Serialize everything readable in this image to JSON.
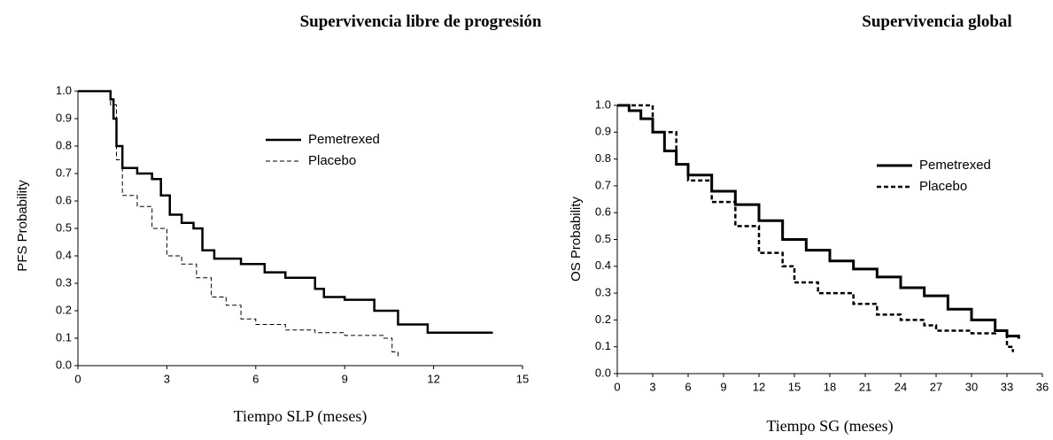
{
  "chart_data": [
    {
      "type": "line",
      "step": true,
      "title": "Supervivencia libre de progresión",
      "x_label": "Tiempo SLP (meses)",
      "y_label": "PFS Probability",
      "xlim": [
        0,
        15
      ],
      "xticks": [
        0,
        3,
        6,
        9,
        12,
        15
      ],
      "ylim": [
        0,
        1
      ],
      "yticks": [
        {
          "value": 0,
          "label": "0.0"
        },
        0.1,
        0.2,
        0.3,
        0.4,
        0.5,
        0.6,
        0.7,
        0.8,
        0.9,
        {
          "value": 1,
          "label": "1.0"
        }
      ],
      "legend": "upper-right",
      "series": [
        {
          "name": "Pemetrexed",
          "color": "#000000",
          "line_style": "solid",
          "line_width": 2.5,
          "x": [
            0,
            0.8,
            1.1,
            1.2,
            1.3,
            1.5,
            2,
            2.5,
            2.8,
            3.1,
            3.5,
            3.9,
            4.2,
            4.6,
            5.5,
            6.3,
            7,
            8,
            8.3,
            9,
            10,
            10.8,
            11.8,
            14
          ],
          "values": [
            1.0,
            1.0,
            0.97,
            0.9,
            0.8,
            0.72,
            0.7,
            0.68,
            0.62,
            0.55,
            0.52,
            0.5,
            0.42,
            0.39,
            0.37,
            0.34,
            0.32,
            0.28,
            0.25,
            0.24,
            0.2,
            0.15,
            0.12,
            0.12
          ]
        },
        {
          "name": "Placebo",
          "color": "#000000",
          "line_style": "dashed",
          "line_width": 1,
          "x": [
            0,
            0.8,
            1.1,
            1.3,
            1.5,
            2,
            2.5,
            3,
            3.5,
            4,
            4.5,
            5,
            5.5,
            6,
            7,
            8,
            9,
            10.3,
            10.6,
            10.8
          ],
          "values": [
            1.0,
            1.0,
            0.95,
            0.75,
            0.62,
            0.58,
            0.5,
            0.4,
            0.37,
            0.32,
            0.25,
            0.22,
            0.17,
            0.15,
            0.13,
            0.12,
            0.11,
            0.1,
            0.05,
            0.03
          ]
        }
      ]
    },
    {
      "type": "line",
      "step": true,
      "title": "Supervivencia global",
      "x_label": "Tiempo SG (meses)",
      "y_label": "OS Probability",
      "xlim": [
        0,
        36
      ],
      "xticks": [
        0,
        3,
        6,
        9,
        12,
        15,
        18,
        21,
        24,
        27,
        30,
        33,
        36
      ],
      "ylim": [
        0,
        1
      ],
      "yticks": [
        {
          "value": 0,
          "label": "0.0"
        },
        0.1,
        0.2,
        0.3,
        0.4,
        0.5,
        0.6,
        0.7,
        0.8,
        0.9,
        {
          "value": 1,
          "label": "1.0"
        }
      ],
      "legend": "upper-right",
      "series": [
        {
          "name": "Pemetrexed",
          "color": "#000000",
          "line_style": "solid",
          "line_width": 3,
          "x": [
            0,
            1,
            2,
            3,
            4,
            5,
            6,
            8,
            10,
            12,
            14,
            16,
            18,
            20,
            22,
            24,
            26,
            28,
            30,
            32,
            33,
            34
          ],
          "values": [
            1.0,
            0.98,
            0.95,
            0.9,
            0.83,
            0.78,
            0.74,
            0.68,
            0.63,
            0.57,
            0.5,
            0.46,
            0.42,
            0.39,
            0.36,
            0.32,
            0.29,
            0.24,
            0.2,
            0.16,
            0.14,
            0.13
          ]
        },
        {
          "name": "Placebo",
          "color": "#000000",
          "line_style": "dashed",
          "line_width": 2.5,
          "x": [
            0,
            3,
            5,
            6,
            8,
            10,
            12,
            14,
            15,
            17,
            20,
            22,
            24,
            26,
            27,
            30,
            32,
            33,
            33.5
          ],
          "values": [
            1.0,
            0.9,
            0.78,
            0.72,
            0.64,
            0.55,
            0.45,
            0.4,
            0.34,
            0.3,
            0.26,
            0.22,
            0.2,
            0.18,
            0.16,
            0.15,
            0.16,
            0.1,
            0.08
          ]
        }
      ]
    }
  ]
}
